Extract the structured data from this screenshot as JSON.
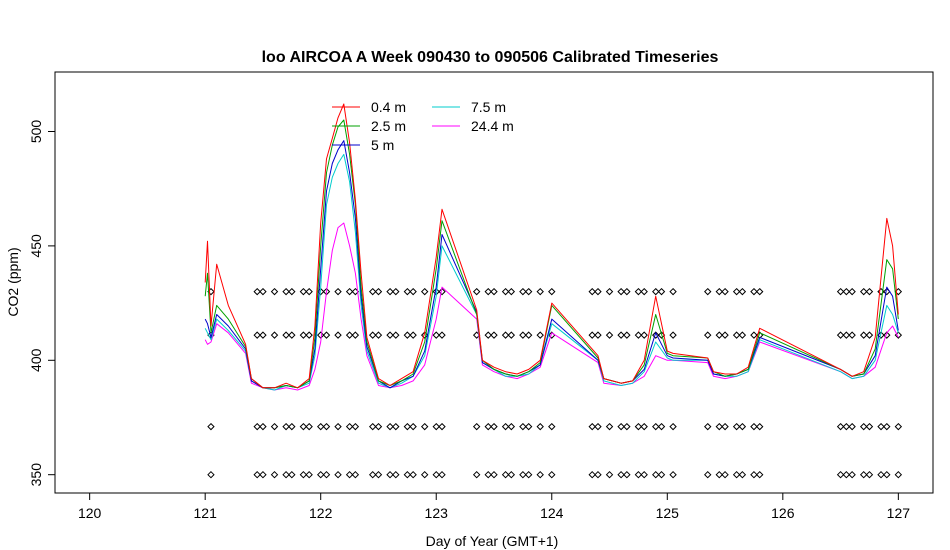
{
  "chart_data": {
    "type": "line",
    "title": "loo AIRCOA A  Week 090430 to 090506  Calibrated Timeseries",
    "xlabel": "Day of Year (GMT+1)",
    "ylabel": "CO2 (ppm)",
    "xlim": [
      119.7,
      127.3
    ],
    "ylim": [
      342,
      526
    ],
    "x_ticks": [
      120,
      121,
      122,
      123,
      124,
      125,
      126,
      127
    ],
    "y_ticks": [
      350,
      400,
      450,
      500
    ],
    "grid": false,
    "legend": {
      "placement": "top-left",
      "columns": 2
    },
    "series": [
      {
        "name": "0.4 m",
        "color": "#ff0000",
        "x": [
          121.0,
          121.02,
          121.05,
          121.1,
          121.2,
          121.35,
          121.4,
          121.5,
          121.6,
          121.7,
          121.8,
          121.9,
          121.95,
          122.0,
          122.05,
          122.1,
          122.15,
          122.2,
          122.25,
          122.3,
          122.35,
          122.4,
          122.5,
          122.6,
          122.7,
          122.8,
          122.9,
          123.0,
          123.05,
          123.35,
          123.4,
          123.5,
          123.6,
          123.7,
          123.8,
          123.9,
          124.0,
          124.4,
          124.45,
          124.6,
          124.7,
          124.8,
          124.9,
          125.0,
          125.05,
          125.35,
          125.4,
          125.5,
          125.6,
          125.7,
          125.8,
          126.5,
          126.6,
          126.7,
          126.8,
          126.9,
          126.95,
          127.0
        ],
        "values": [
          434,
          452,
          415,
          442,
          424,
          407,
          392,
          388,
          388,
          390,
          388,
          392,
          415,
          460,
          488,
          497,
          506,
          512,
          495,
          470,
          438,
          410,
          392,
          389,
          392,
          395,
          412,
          445,
          466,
          422,
          400,
          397,
          395,
          394,
          396,
          400,
          425,
          402,
          392,
          390,
          391,
          400,
          428,
          404,
          403,
          401,
          395,
          394,
          394,
          397,
          414,
          396,
          393,
          395,
          410,
          462,
          450,
          420
        ]
      },
      {
        "name": "2.5 m",
        "color": "#00a000",
        "x": [
          121.0,
          121.02,
          121.05,
          121.1,
          121.2,
          121.35,
          121.4,
          121.5,
          121.6,
          121.7,
          121.8,
          121.9,
          121.95,
          122.0,
          122.05,
          122.1,
          122.15,
          122.2,
          122.25,
          122.3,
          122.35,
          122.4,
          122.5,
          122.6,
          122.7,
          122.8,
          122.9,
          123.0,
          123.05,
          123.35,
          123.4,
          123.5,
          123.6,
          123.7,
          123.8,
          123.9,
          124.0,
          124.4,
          124.45,
          124.6,
          124.7,
          124.8,
          124.9,
          125.0,
          125.05,
          125.35,
          125.4,
          125.5,
          125.6,
          125.7,
          125.8,
          126.5,
          126.6,
          126.7,
          126.8,
          126.9,
          126.95,
          127.0
        ],
        "values": [
          428,
          438,
          412,
          424,
          418,
          406,
          392,
          388,
          388,
          389,
          388,
          391,
          410,
          450,
          482,
          494,
          502,
          505,
          490,
          468,
          432,
          408,
          391,
          389,
          391,
          394,
          408,
          440,
          461,
          420,
          400,
          396,
          394,
          393,
          395,
          399,
          424,
          401,
          392,
          390,
          391,
          398,
          420,
          403,
          402,
          401,
          395,
          393,
          394,
          396,
          412,
          396,
          393,
          394,
          405,
          444,
          440,
          418
        ]
      },
      {
        "name": "5 m",
        "color": "#0000cc",
        "x": [
          121.0,
          121.02,
          121.05,
          121.1,
          121.2,
          121.35,
          121.4,
          121.5,
          121.6,
          121.7,
          121.8,
          121.9,
          121.95,
          122.0,
          122.05,
          122.1,
          122.15,
          122.2,
          122.25,
          122.3,
          122.35,
          122.4,
          122.5,
          122.6,
          122.7,
          122.8,
          122.9,
          123.0,
          123.05,
          123.35,
          123.4,
          123.5,
          123.6,
          123.7,
          123.8,
          123.9,
          124.0,
          124.4,
          124.45,
          124.6,
          124.7,
          124.8,
          124.9,
          125.0,
          125.05,
          125.35,
          125.4,
          125.5,
          125.6,
          125.7,
          125.8,
          126.5,
          126.6,
          126.7,
          126.8,
          126.9,
          126.95,
          127.0
        ],
        "values": [
          418,
          416,
          410,
          420,
          415,
          405,
          391,
          388,
          388,
          389,
          388,
          391,
          405,
          440,
          474,
          486,
          492,
          496,
          482,
          462,
          428,
          406,
          391,
          388,
          391,
          393,
          404,
          432,
          455,
          421,
          399,
          396,
          394,
          393,
          395,
          398,
          418,
          400,
          392,
          390,
          391,
          396,
          412,
          402,
          401,
          400,
          394,
          393,
          394,
          396,
          410,
          396,
          393,
          394,
          402,
          432,
          428,
          413
        ]
      },
      {
        "name": "7.5 m",
        "color": "#00cccc",
        "x": [
          121.0,
          121.02,
          121.05,
          121.1,
          121.2,
          121.35,
          121.4,
          121.5,
          121.6,
          121.7,
          121.8,
          121.9,
          121.95,
          122.0,
          122.05,
          122.1,
          122.15,
          122.2,
          122.25,
          122.3,
          122.35,
          122.4,
          122.5,
          122.6,
          122.7,
          122.8,
          122.9,
          123.0,
          123.05,
          123.35,
          123.4,
          123.5,
          123.6,
          123.7,
          123.8,
          123.9,
          124.0,
          124.4,
          124.45,
          124.6,
          124.7,
          124.8,
          124.9,
          125.0,
          125.05,
          125.35,
          125.4,
          125.5,
          125.6,
          125.7,
          125.8,
          126.5,
          126.6,
          126.7,
          126.8,
          126.9,
          126.95,
          127.0
        ],
        "values": [
          414,
          412,
          409,
          418,
          413,
          404,
          391,
          388,
          387,
          389,
          388,
          390,
          402,
          432,
          468,
          480,
          486,
          490,
          478,
          456,
          424,
          404,
          390,
          388,
          390,
          393,
          402,
          428,
          450,
          420,
          399,
          396,
          393,
          393,
          394,
          398,
          416,
          400,
          391,
          389,
          390,
          395,
          408,
          401,
          400,
          400,
          394,
          393,
          393,
          395,
          409,
          395,
          392,
          393,
          400,
          424,
          420,
          412
        ]
      },
      {
        "name": "24.4 m",
        "color": "#ff00ff",
        "x": [
          121.0,
          121.02,
          121.05,
          121.1,
          121.2,
          121.35,
          121.4,
          121.5,
          121.6,
          121.7,
          121.8,
          121.9,
          121.95,
          122.0,
          122.05,
          122.1,
          122.15,
          122.2,
          122.25,
          122.3,
          122.35,
          122.4,
          122.5,
          122.6,
          122.7,
          122.8,
          122.9,
          123.0,
          123.05,
          123.35,
          123.4,
          123.5,
          123.6,
          123.7,
          123.8,
          123.9,
          124.0,
          124.4,
          124.45,
          124.6,
          124.7,
          124.8,
          124.9,
          125.0,
          125.05,
          125.35,
          125.4,
          125.5,
          125.6,
          125.7,
          125.8,
          126.5,
          126.6,
          126.7,
          126.8,
          126.9,
          126.95,
          127.0
        ],
        "values": [
          409,
          407,
          408,
          416,
          412,
          403,
          390,
          388,
          387,
          388,
          387,
          389,
          396,
          408,
          430,
          448,
          458,
          460,
          450,
          438,
          418,
          402,
          389,
          388,
          389,
          391,
          398,
          418,
          432,
          418,
          398,
          395,
          393,
          392,
          394,
          397,
          412,
          399,
          390,
          389,
          390,
          393,
          402,
          400,
          400,
          399,
          393,
          392,
          393,
          395,
          408,
          395,
          392,
          393,
          397,
          412,
          415,
          410
        ]
      }
    ],
    "markers": {
      "symbol": "open-diamond",
      "color": "#000000",
      "levels": [
        430,
        411,
        371,
        350
      ],
      "x": [
        121.05,
        121.45,
        121.5,
        121.6,
        121.7,
        121.75,
        121.85,
        121.9,
        122.0,
        122.05,
        122.15,
        122.25,
        122.3,
        122.45,
        122.5,
        122.6,
        122.65,
        122.75,
        122.8,
        122.9,
        123.0,
        123.05,
        123.35,
        123.45,
        123.5,
        123.6,
        123.65,
        123.75,
        123.8,
        123.9,
        124.0,
        124.35,
        124.4,
        124.5,
        124.6,
        124.65,
        124.75,
        124.8,
        124.9,
        124.95,
        125.05,
        125.35,
        125.45,
        125.5,
        125.6,
        125.65,
        125.75,
        125.8,
        126.5,
        126.55,
        126.6,
        126.7,
        126.75,
        126.85,
        126.9,
        127.0
      ]
    }
  }
}
